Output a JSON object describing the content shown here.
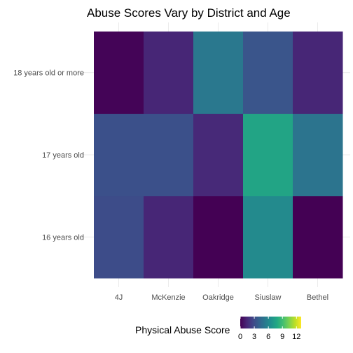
{
  "chart_data": {
    "type": "heatmap",
    "title": "Abuse Scores Vary by District and Age",
    "xlabel": "",
    "ylabel": "",
    "x_categories": [
      "4J",
      "McKenzie",
      "Oakridge",
      "Siuslaw",
      "Bethel"
    ],
    "y_categories": [
      "16 years old",
      "17 years old",
      "18 years old or more"
    ],
    "values": [
      [
        3.0,
        1.4,
        0.0,
        6.2,
        0.0
      ],
      [
        3.2,
        3.2,
        1.5,
        7.6,
        5.0
      ],
      [
        0.1,
        1.4,
        5.2,
        3.4,
        1.4
      ]
    ],
    "legend": {
      "title": "Physical Abuse Score",
      "ticks": [
        0,
        3,
        6,
        9,
        12
      ],
      "range": [
        0,
        13
      ],
      "placement": "bottom",
      "colormap": "viridis"
    },
    "grid": true
  }
}
